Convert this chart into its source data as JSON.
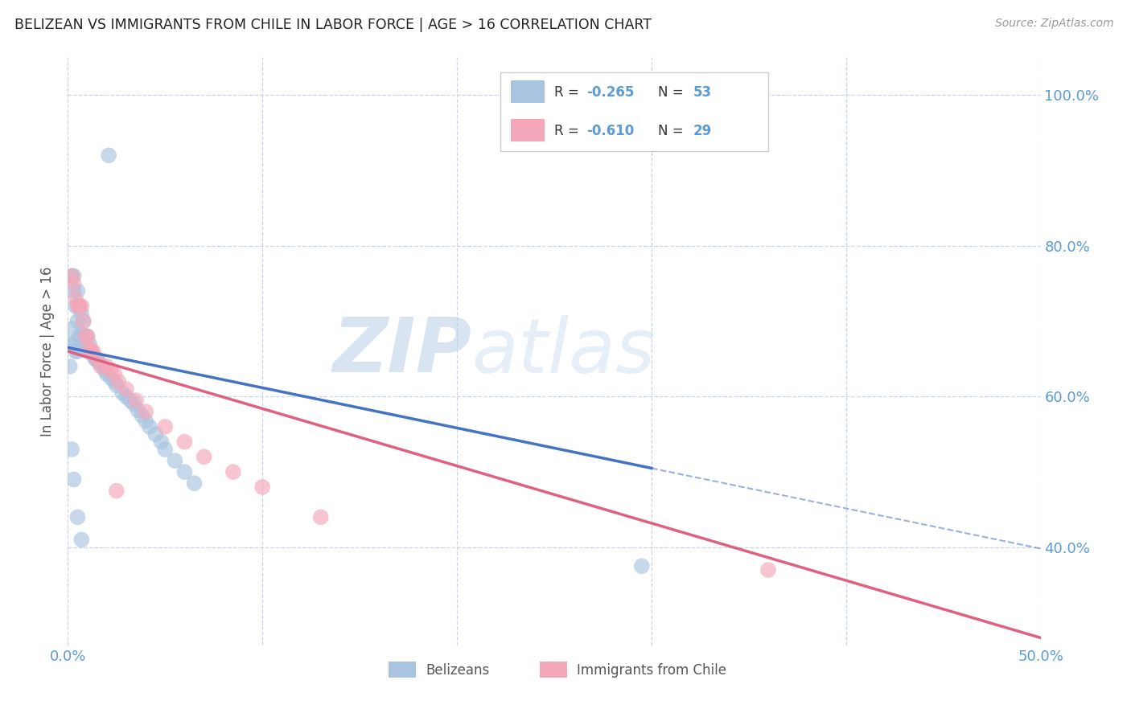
{
  "title": "BELIZEAN VS IMMIGRANTS FROM CHILE IN LABOR FORCE | AGE > 16 CORRELATION CHART",
  "source": "Source: ZipAtlas.com",
  "ylabel": "In Labor Force | Age > 16",
  "xlim": [
    0.0,
    0.5
  ],
  "ylim": [
    0.27,
    1.05
  ],
  "y_ticks": [
    0.4,
    0.6,
    0.8,
    1.0
  ],
  "y_tick_labels": [
    "40.0%",
    "60.0%",
    "80.0%",
    "100.0%"
  ],
  "belizean_color": "#a8c4e0",
  "chile_color": "#f4a7b9",
  "trend_belizean_color": "#4472c4",
  "trend_chile_color": "#e06080",
  "watermark_zip": "ZIP",
  "watermark_atlas": "atlas",
  "background_color": "#ffffff",
  "grid_color": "#c8d4e8",
  "axis_color": "#5b9bd5",
  "belizean_x": [
    0.001,
    0.001,
    0.002,
    0.002,
    0.003,
    0.003,
    0.003,
    0.004,
    0.004,
    0.005,
    0.005,
    0.005,
    0.006,
    0.006,
    0.007,
    0.007,
    0.008,
    0.008,
    0.009,
    0.01,
    0.01,
    0.011,
    0.012,
    0.013,
    0.014,
    0.015,
    0.016,
    0.018,
    0.019,
    0.02,
    0.022,
    0.024,
    0.025,
    0.028,
    0.03,
    0.032,
    0.034,
    0.036,
    0.038,
    0.04,
    0.042,
    0.045,
    0.048,
    0.05,
    0.055,
    0.06,
    0.065,
    0.002,
    0.003,
    0.005,
    0.007,
    0.295,
    0.021
  ],
  "belizean_y": [
    0.67,
    0.64,
    0.76,
    0.69,
    0.76,
    0.74,
    0.67,
    0.72,
    0.66,
    0.74,
    0.7,
    0.66,
    0.72,
    0.68,
    0.71,
    0.68,
    0.7,
    0.67,
    0.68,
    0.68,
    0.66,
    0.67,
    0.66,
    0.655,
    0.65,
    0.65,
    0.645,
    0.64,
    0.635,
    0.63,
    0.625,
    0.62,
    0.615,
    0.605,
    0.6,
    0.595,
    0.59,
    0.582,
    0.575,
    0.568,
    0.56,
    0.55,
    0.54,
    0.53,
    0.515,
    0.5,
    0.485,
    0.53,
    0.49,
    0.44,
    0.41,
    0.375,
    0.92
  ],
  "chile_x": [
    0.002,
    0.003,
    0.004,
    0.005,
    0.006,
    0.007,
    0.008,
    0.009,
    0.01,
    0.011,
    0.012,
    0.013,
    0.015,
    0.017,
    0.02,
    0.022,
    0.024,
    0.026,
    0.03,
    0.035,
    0.04,
    0.05,
    0.06,
    0.07,
    0.085,
    0.1,
    0.13,
    0.36,
    0.025
  ],
  "chile_y": [
    0.76,
    0.75,
    0.73,
    0.72,
    0.72,
    0.72,
    0.7,
    0.68,
    0.68,
    0.665,
    0.66,
    0.66,
    0.65,
    0.64,
    0.64,
    0.635,
    0.63,
    0.62,
    0.61,
    0.595,
    0.58,
    0.56,
    0.54,
    0.52,
    0.5,
    0.48,
    0.44,
    0.37,
    0.475
  ],
  "trend_bel_x0": 0.0,
  "trend_bel_y0": 0.665,
  "trend_bel_x1": 0.3,
  "trend_bel_y1": 0.505,
  "trend_chile_x0": 0.0,
  "trend_chile_y0": 0.66,
  "trend_chile_x1": 0.5,
  "trend_chile_y1": 0.28
}
